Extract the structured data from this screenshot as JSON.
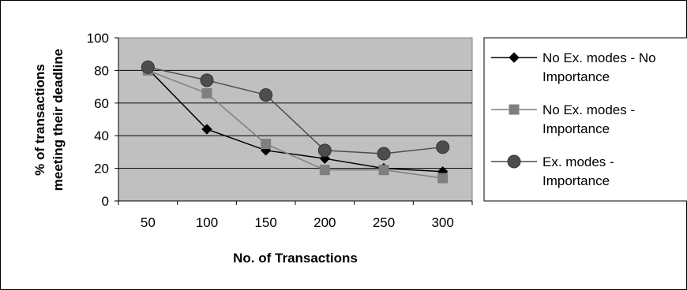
{
  "chart_data": {
    "type": "line",
    "title": "",
    "xlabel": "No. of Transactions",
    "ylabel_lines": [
      "% of transactions",
      "meeting their deadline"
    ],
    "categories": [
      "50",
      "100",
      "150",
      "200",
      "250",
      "300"
    ],
    "ylim": [
      0,
      100
    ],
    "yticks": [
      "0",
      "20",
      "40",
      "60",
      "80",
      "100"
    ],
    "grid": "horizontal",
    "legend_position": "right",
    "series": [
      {
        "name_lines": [
          "No Ex. modes - No",
          "Importance"
        ],
        "values": [
          81,
          44,
          31,
          26,
          20,
          18
        ],
        "color": "#000000",
        "marker": "diamond"
      },
      {
        "name_lines": [
          "No Ex. modes -",
          "Importance"
        ],
        "values": [
          80,
          66,
          35,
          19,
          19,
          14
        ],
        "color": "#7f7f7f",
        "marker": "square"
      },
      {
        "name_lines": [
          "Ex. modes -",
          "Importance"
        ],
        "values": [
          82,
          74,
          65,
          31,
          29,
          33
        ],
        "color": "#4d4d4d",
        "marker": "circle"
      }
    ]
  }
}
